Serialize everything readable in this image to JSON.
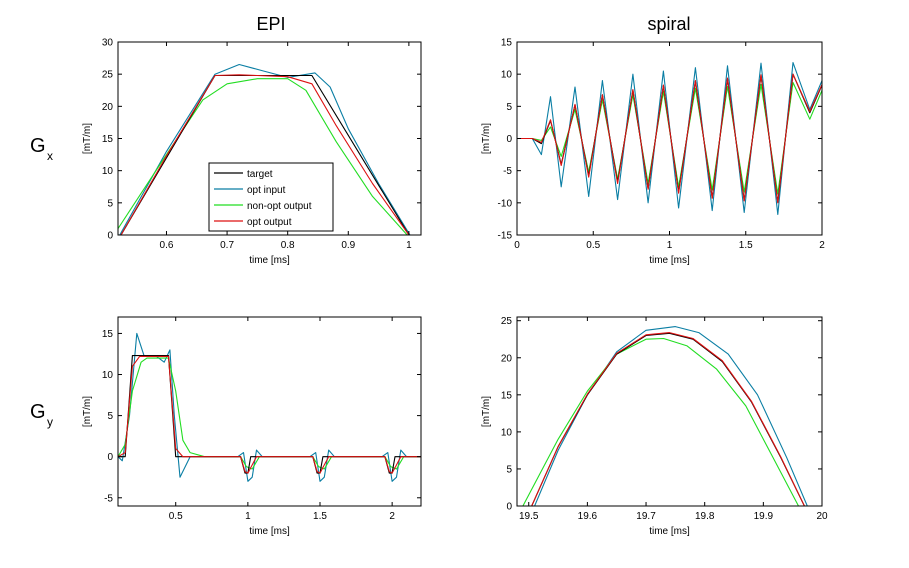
{
  "figure": {
    "col_titles": [
      "EPI",
      "spiral"
    ],
    "row_labels": [
      {
        "main": "G",
        "sub": "x"
      },
      {
        "main": "G",
        "sub": "y"
      }
    ]
  },
  "legend": {
    "entries": [
      {
        "label": "target",
        "color": "#000000"
      },
      {
        "label": "opt input",
        "color": "#0a7ea4"
      },
      {
        "label": "non-opt output",
        "color": "#22dd22"
      },
      {
        "label": "opt output",
        "color": "#dd1111"
      }
    ]
  },
  "chart_data": [
    {
      "id": "epi-gx",
      "type": "line",
      "xlabel": "time [ms]",
      "ylabel": "[mT/m]",
      "xlim": [
        0.52,
        1.02
      ],
      "ylim": [
        0,
        30
      ],
      "xticks": [
        0.6,
        0.7,
        0.8,
        0.9,
        1.0
      ],
      "xticklabels": [
        "0.6",
        "0.7",
        "0.8",
        "0.9",
        "1"
      ],
      "yticks": [
        0,
        5,
        10,
        15,
        20,
        25,
        30
      ],
      "series": [
        {
          "name": "target",
          "color": "#000000",
          "x": [
            0.525,
            0.68,
            0.84,
            1.0
          ],
          "y": [
            0,
            24.8,
            24.8,
            0
          ]
        },
        {
          "name": "opt input",
          "color": "#0a7ea4",
          "x": [
            0.52,
            0.6,
            0.68,
            0.72,
            0.76,
            0.8,
            0.845,
            0.87,
            0.9,
            0.95,
            1.005
          ],
          "y": [
            -0.5,
            13.0,
            25.0,
            26.5,
            25.5,
            24.5,
            25.2,
            23.0,
            16.5,
            8.0,
            -0.5
          ]
        },
        {
          "name": "non-opt output",
          "color": "#22dd22",
          "x": [
            0.52,
            0.6,
            0.66,
            0.7,
            0.75,
            0.8,
            0.83,
            0.88,
            0.94,
            1.0
          ],
          "y": [
            1.0,
            12.5,
            21.0,
            23.5,
            24.3,
            24.3,
            22.5,
            14.5,
            6.0,
            -0.3
          ]
        },
        {
          "name": "opt output",
          "color": "#dd1111",
          "x": [
            0.525,
            0.6,
            0.68,
            0.72,
            0.8,
            0.84,
            0.88,
            0.94,
            1.0
          ],
          "y": [
            0,
            12.3,
            24.8,
            24.9,
            24.6,
            23.5,
            17.0,
            8.0,
            0
          ]
        }
      ]
    },
    {
      "id": "spiral-gx",
      "type": "line",
      "xlabel": "time [ms]",
      "ylabel": "[mT/m]",
      "xlim": [
        0,
        2
      ],
      "ylim": [
        -15,
        15
      ],
      "xticks": [
        0,
        0.5,
        1,
        1.5,
        2
      ],
      "xticklabels": [
        "0",
        "0.5",
        "1",
        "1.5",
        "2"
      ],
      "yticks": [
        -15,
        -10,
        -5,
        0,
        5,
        10,
        15
      ],
      "series": [
        {
          "name": "target",
          "color": "#000000",
          "x": [
            0,
            0.1,
            0.16,
            0.22,
            0.29,
            0.38,
            0.47,
            0.56,
            0.66,
            0.76,
            0.86,
            0.96,
            1.06,
            1.17,
            1.28,
            1.38,
            1.49,
            1.6,
            1.71,
            1.81,
            1.92,
            2.0
          ],
          "y": [
            0,
            0,
            -0.8,
            2.8,
            -4.0,
            5.2,
            -5.8,
            6.8,
            -6.8,
            7.5,
            -7.8,
            8.2,
            -8.3,
            8.9,
            -9.2,
            9.3,
            -9.6,
            9.8,
            -9.9,
            10.0,
            4.0,
            8.3
          ]
        },
        {
          "name": "opt input",
          "color": "#0a7ea4",
          "x": [
            0,
            0.1,
            0.16,
            0.22,
            0.29,
            0.38,
            0.47,
            0.56,
            0.66,
            0.76,
            0.86,
            0.96,
            1.06,
            1.17,
            1.28,
            1.38,
            1.49,
            1.6,
            1.71,
            1.81,
            1.92,
            2.0
          ],
          "y": [
            0,
            0,
            -2.5,
            6.5,
            -7.5,
            8.0,
            -9.0,
            9.0,
            -9.5,
            10.0,
            -10.0,
            10.5,
            -10.8,
            11.0,
            -11.2,
            11.3,
            -11.5,
            11.7,
            -11.8,
            11.8,
            4.5,
            9.0
          ]
        },
        {
          "name": "non-opt output",
          "color": "#22dd22",
          "x": [
            0,
            0.1,
            0.16,
            0.22,
            0.29,
            0.38,
            0.47,
            0.56,
            0.66,
            0.76,
            0.86,
            0.96,
            1.06,
            1.17,
            1.28,
            1.38,
            1.49,
            1.6,
            1.71,
            1.81,
            1.92,
            2.0
          ],
          "y": [
            0,
            0,
            -0.3,
            1.8,
            -2.8,
            4.5,
            -5.2,
            6.0,
            -6.3,
            6.8,
            -7.0,
            7.3,
            -7.5,
            7.8,
            -8.0,
            8.1,
            -8.3,
            8.4,
            -8.6,
            8.7,
            3.0,
            7.5
          ]
        },
        {
          "name": "opt output",
          "color": "#dd1111",
          "x": [
            0,
            0.1,
            0.16,
            0.22,
            0.29,
            0.38,
            0.47,
            0.56,
            0.66,
            0.76,
            0.86,
            0.96,
            1.06,
            1.17,
            1.28,
            1.38,
            1.49,
            1.6,
            1.71,
            1.81,
            1.92,
            2.0
          ],
          "y": [
            0,
            0,
            -0.6,
            2.9,
            -4.2,
            5.3,
            -6.0,
            6.8,
            -7.0,
            7.6,
            -7.9,
            8.3,
            -8.5,
            9.0,
            -9.3,
            9.4,
            -9.7,
            9.9,
            -10.0,
            10.0,
            4.2,
            8.4
          ]
        }
      ]
    },
    {
      "id": "epi-gy",
      "type": "line",
      "xlabel": "time [ms]",
      "ylabel": "[mT/m]",
      "xlim": [
        0.1,
        2.2
      ],
      "ylim": [
        -6,
        17
      ],
      "xticks": [
        0.5,
        1,
        1.5,
        2
      ],
      "xticklabels": [
        "0.5",
        "1",
        "1.5",
        "2"
      ],
      "yticks": [
        -5,
        0,
        5,
        10,
        15
      ],
      "series": [
        {
          "name": "target",
          "color": "#000000",
          "x": [
            0.1,
            0.15,
            0.2,
            0.45,
            0.5,
            0.95,
            0.98,
            1.0,
            1.02,
            1.45,
            1.48,
            1.5,
            1.52,
            1.95,
            1.98,
            2.0,
            2.02,
            2.2
          ],
          "y": [
            0,
            0,
            12.3,
            12.3,
            0,
            0,
            -2,
            -2,
            0,
            0,
            -2,
            -2,
            0,
            0,
            -2,
            -2,
            0,
            0
          ]
        },
        {
          "name": "opt input",
          "color": "#0a7ea4",
          "x": [
            0.1,
            0.13,
            0.18,
            0.23,
            0.28,
            0.36,
            0.42,
            0.46,
            0.49,
            0.53,
            0.6,
            0.93,
            0.97,
            1.0,
            1.03,
            1.06,
            1.1,
            1.43,
            1.47,
            1.5,
            1.53,
            1.56,
            1.6,
            1.93,
            1.97,
            2.0,
            2.03,
            2.06,
            2.1,
            2.2
          ],
          "y": [
            0,
            -0.5,
            5,
            15,
            12.3,
            12.3,
            11.5,
            13,
            5,
            -2.5,
            0,
            0,
            0.5,
            -3,
            -2.5,
            0.8,
            0,
            0,
            0.5,
            -3,
            -2.5,
            0.8,
            0,
            0,
            0.5,
            -3,
            -2.5,
            0.8,
            0,
            0
          ]
        },
        {
          "name": "non-opt output",
          "color": "#22dd22",
          "x": [
            0.1,
            0.15,
            0.2,
            0.26,
            0.3,
            0.45,
            0.5,
            0.55,
            0.6,
            0.7,
            0.95,
            0.99,
            1.03,
            1.08,
            1.45,
            1.49,
            1.53,
            1.58,
            1.95,
            1.99,
            2.03,
            2.08,
            2.2
          ],
          "y": [
            0,
            1.5,
            8,
            11.5,
            12,
            12,
            8,
            2.0,
            0.5,
            0,
            0,
            -1.2,
            -1.5,
            0,
            0,
            -1.2,
            -1.5,
            0,
            0,
            -1.2,
            -1.5,
            0,
            0
          ]
        },
        {
          "name": "opt output",
          "color": "#dd1111",
          "x": [
            0.1,
            0.15,
            0.2,
            0.25,
            0.45,
            0.5,
            0.55,
            0.95,
            0.98,
            1.0,
            1.03,
            1.06,
            1.45,
            1.48,
            1.5,
            1.53,
            1.56,
            1.95,
            1.98,
            2.0,
            2.03,
            2.06,
            2.2
          ],
          "y": [
            0,
            0.5,
            11,
            12.2,
            12.2,
            1,
            0,
            0,
            -1.8,
            -2,
            -1,
            0,
            0,
            -1.8,
            -2,
            -1,
            0,
            0,
            -1.8,
            -2,
            -1,
            0,
            0
          ]
        }
      ]
    },
    {
      "id": "spiral-gy",
      "type": "line",
      "xlabel": "time [ms]",
      "ylabel": "[mT/m]",
      "xlim": [
        19.48,
        20.0
      ],
      "ylim": [
        0,
        25.5
      ],
      "xticks": [
        19.5,
        19.6,
        19.7,
        19.8,
        19.9,
        20.0
      ],
      "xticklabels": [
        "19.5",
        "19.6",
        "19.7",
        "19.8",
        "19.9",
        "20"
      ],
      "yticks": [
        0,
        5,
        10,
        15,
        20,
        25
      ],
      "series": [
        {
          "name": "target",
          "color": "#000000",
          "x": [
            19.505,
            19.55,
            19.6,
            19.65,
            19.7,
            19.74,
            19.78,
            19.83,
            19.88,
            19.93,
            19.97
          ],
          "y": [
            0,
            8,
            15.0,
            20.5,
            23.0,
            23.3,
            22.5,
            19.5,
            14.0,
            6.5,
            0
          ]
        },
        {
          "name": "opt input",
          "color": "#0a7ea4",
          "x": [
            19.51,
            19.55,
            19.6,
            19.65,
            19.7,
            19.75,
            19.79,
            19.84,
            19.89,
            19.94,
            19.975
          ],
          "y": [
            0,
            7.5,
            15.0,
            20.8,
            23.7,
            24.2,
            23.4,
            20.5,
            15.0,
            6.5,
            0
          ]
        },
        {
          "name": "non-opt output",
          "color": "#22dd22",
          "x": [
            19.49,
            19.55,
            19.6,
            19.65,
            19.7,
            19.73,
            19.77,
            19.82,
            19.87,
            19.92,
            19.96
          ],
          "y": [
            0,
            9,
            15.5,
            20.5,
            22.5,
            22.6,
            21.6,
            18.5,
            13.5,
            6.0,
            0
          ]
        },
        {
          "name": "opt output",
          "color": "#dd1111",
          "x": [
            19.505,
            19.55,
            19.6,
            19.65,
            19.7,
            19.74,
            19.78,
            19.83,
            19.88,
            19.93,
            19.97
          ],
          "y": [
            0,
            8,
            15.1,
            20.6,
            23.1,
            23.4,
            22.6,
            19.6,
            14.1,
            6.6,
            0
          ]
        }
      ]
    }
  ]
}
